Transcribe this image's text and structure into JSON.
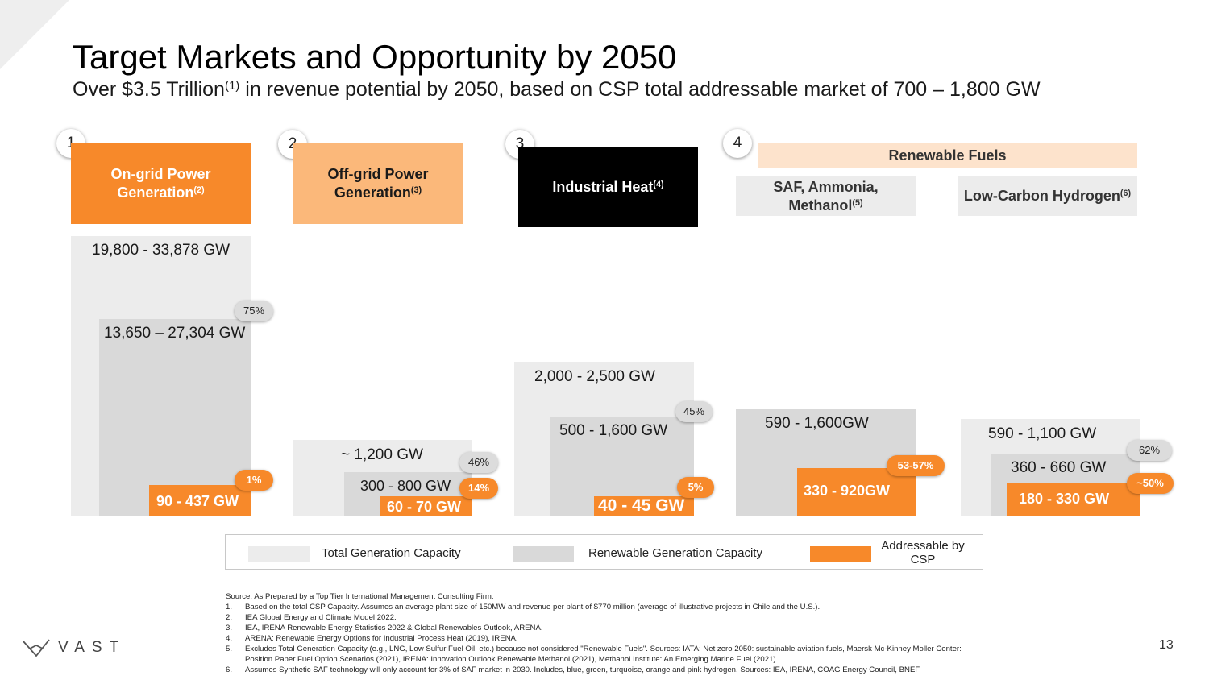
{
  "title": "Target Markets and Opportunity by 2050",
  "subtitle": {
    "pre": "Over $3.5 Trillion",
    "sup": "(1)",
    "post": " in revenue potential by 2050, based on CSP total addressable market of 700 – 1,800 GW"
  },
  "markets": [
    {
      "number": "1",
      "name": "On-grid Power Generation",
      "sup": "(2)",
      "total": "19,800 - 33,878 GW",
      "renewable": "13,650 – 27,304 GW",
      "renewable_pct": "75%",
      "csp": "90 - 437 GW",
      "csp_pct": "1%"
    },
    {
      "number": "2",
      "name": "Off-grid Power Generation",
      "sup": "(3)",
      "total": "~ 1,200 GW",
      "renewable": "300 - 800 GW",
      "renewable_pct": "46%",
      "csp": "60 - 70 GW",
      "csp_pct": "14%"
    },
    {
      "number": "3",
      "name": "Industrial Heat",
      "sup": "(4)",
      "total": "2,000 - 2,500 GW",
      "renewable": "500 - 1,600 GW",
      "renewable_pct": "45%",
      "csp": "40 - 45 GW",
      "csp_pct": "5%"
    },
    {
      "number": "4",
      "group": "Renewable Fuels"
    },
    {
      "name": "SAF, Ammonia, Methanol",
      "sup": "(5)",
      "renewable": "590 - 1,600GW",
      "csp": "330 - 920GW",
      "csp_pct": "53-57%"
    },
    {
      "name": "Low-Carbon Hydrogen",
      "sup": "(6)",
      "total": "590 - 1,100 GW",
      "renewable": "360 - 660 GW",
      "renewable_pct": "62%",
      "csp": "180 - 330 GW",
      "csp_pct": "~50%"
    }
  ],
  "legend": {
    "total": "Total Generation Capacity",
    "renewable": "Renewable Generation Capacity",
    "csp": "Addressable by CSP"
  },
  "colors": {
    "total": "#ececec",
    "renewable": "#d9d9d9",
    "csp": "#f7892a",
    "offgrid_header": "#fbb87a",
    "fuels_header": "#fde3cc",
    "industrial_header": "#000000"
  },
  "footnotes": {
    "source": "Source: As Prepared by a Top Tier International Management Consulting Firm.",
    "items": [
      {
        "n": "1.",
        "text": "Based on the total CSP Capacity. Assumes an average plant size of 150MW and revenue per plant of $770 million (average of illustrative projects in Chile and the U.S.)."
      },
      {
        "n": "2.",
        "text": "IEA Global Energy and Climate Model 2022."
      },
      {
        "n": "3.",
        "text": "IEA, IRENA Renewable Energy Statistics 2022 & Global Renewables Outlook, ARENA."
      },
      {
        "n": "4.",
        "text": "ARENA: Renewable Energy Options for Industrial Process Heat (2019), IRENA."
      },
      {
        "n": "5.",
        "text": "Excludes Total Generation Capacity (e.g., LNG, Low Sulfur Fuel Oil, etc.) because not considered \"Renewable Fuels\". Sources: IATA: Net zero 2050: sustainable aviation fuels, Maersk Mc-Kinney Moller Center:"
      },
      {
        "n": "",
        "text": "Position Paper Fuel Option Scenarios (2021), IRENA: Innovation Outlook Renewable Methanol (2021), Methanol Institute: An Emerging Marine Fuel (2021)."
      },
      {
        "n": "6.",
        "text": "Assumes Synthetic SAF technology will only account for 3% of SAF market in 2030. Includes, blue, green, turquoise, orange and pink hydrogen. Sources: IEA, IRENA, COAG Energy Council, BNEF."
      }
    ]
  },
  "logo": "VAST",
  "page_number": "13"
}
